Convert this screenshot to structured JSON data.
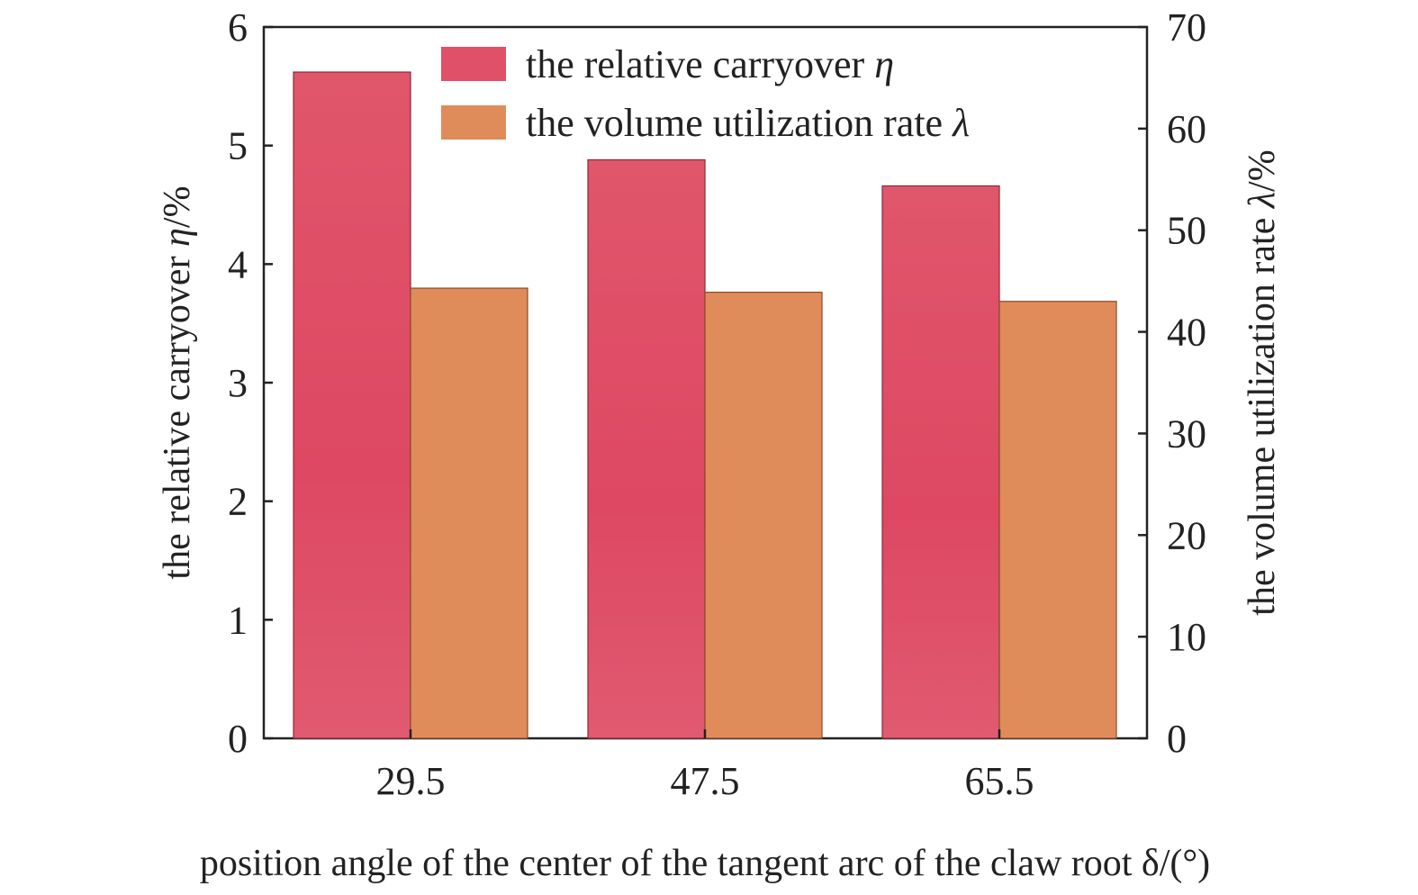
{
  "chart_data": {
    "type": "bar",
    "categories": [
      "29.5",
      "47.5",
      "65.5"
    ],
    "xlabel": "position angle of the center of the tangent arc of the claw root δ/(°)",
    "y_left": {
      "label_prefix": "the relative carryover ",
      "label_symbol": "η",
      "label_suffix": "/%",
      "range": [
        0,
        6
      ],
      "ticks": [
        0,
        1,
        2,
        3,
        4,
        5,
        6
      ]
    },
    "y_right": {
      "label_prefix": "the volume utilization rate ",
      "label_symbol": "λ",
      "label_suffix": "/%",
      "range": [
        0,
        70
      ],
      "ticks": [
        0,
        10,
        20,
        30,
        40,
        50,
        60,
        70
      ]
    },
    "series": [
      {
        "name_prefix": "the relative carryover ",
        "name_symbol": "η",
        "axis": "left",
        "color": "#e05068",
        "values": [
          5.62,
          4.88,
          4.66
        ]
      },
      {
        "name_prefix": "the volume utilization rate ",
        "name_symbol": "λ",
        "axis": "right",
        "color": "#e08c5a",
        "values": [
          44.3,
          43.9,
          43.0
        ]
      }
    ],
    "legend_position": "top-center",
    "grid": false
  }
}
